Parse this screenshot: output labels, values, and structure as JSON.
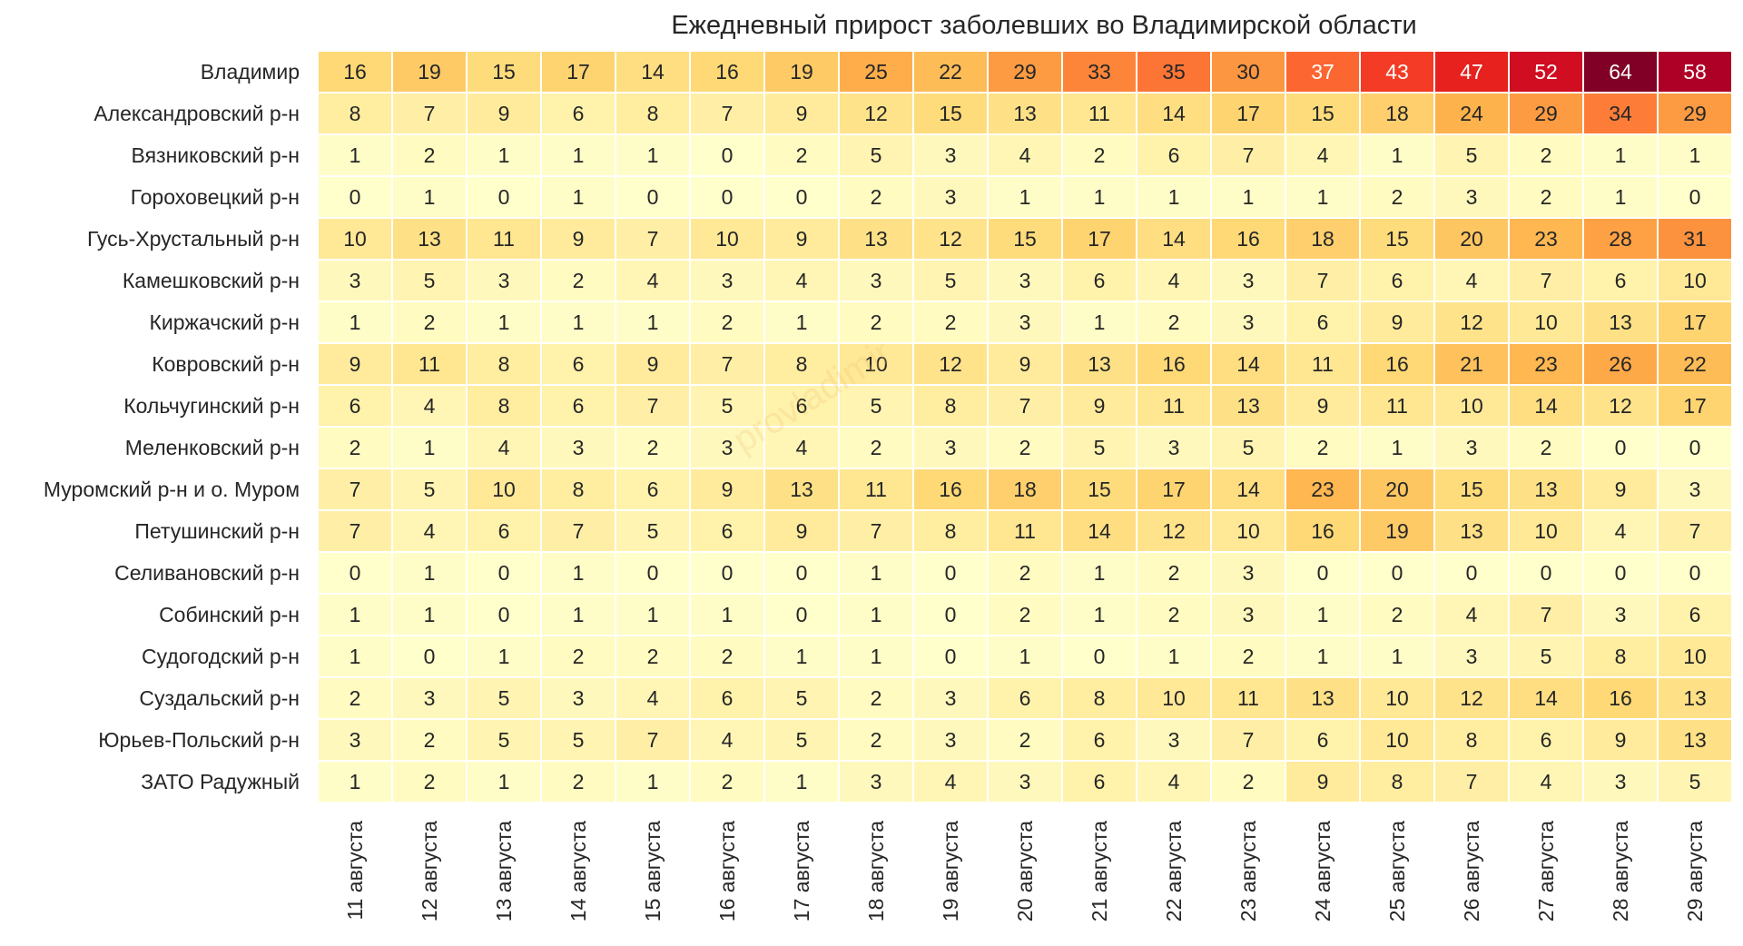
{
  "chart_data": {
    "type": "heatmap",
    "title": "Ежедневный прирост заболевших во Владимирской области",
    "xlabel": "",
    "ylabel": "",
    "x": [
      "11 августа",
      "12 августа",
      "13 августа",
      "14 августа",
      "15 августа",
      "16 августа",
      "17 августа",
      "18 августа",
      "19 августа",
      "20 августа",
      "21 августа",
      "22 августа",
      "23 августа",
      "24 августа",
      "25 августа",
      "26 августа",
      "27 августа",
      "28 августа",
      "29 августа"
    ],
    "y": [
      "Владимир",
      "Александровский р-н",
      "Вязниковский р-н",
      "Гороховецкий р-н",
      "Гусь-Хрустальный р-н",
      "Камешковский р-н",
      "Киржачский р-н",
      "Ковровский р-н",
      "Кольчугинский р-н",
      "Меленковский р-н",
      "Муромский р-н и о. Муром",
      "Петушинский р-н",
      "Селивановский р-н",
      "Собинский р-н",
      "Судогодский р-н",
      "Суздальский р-н",
      "Юрьев-Польский р-н",
      "ЗАТО Радужный"
    ],
    "values": [
      [
        16,
        19,
        15,
        17,
        14,
        16,
        19,
        25,
        22,
        29,
        33,
        35,
        30,
        37,
        43,
        47,
        52,
        64,
        58
      ],
      [
        8,
        7,
        9,
        6,
        8,
        7,
        9,
        12,
        15,
        13,
        11,
        14,
        17,
        15,
        18,
        24,
        29,
        34,
        29
      ],
      [
        1,
        2,
        1,
        1,
        1,
        0,
        2,
        5,
        3,
        4,
        2,
        6,
        7,
        4,
        1,
        5,
        2,
        1,
        1
      ],
      [
        0,
        1,
        0,
        1,
        0,
        0,
        0,
        2,
        3,
        1,
        1,
        1,
        1,
        1,
        2,
        3,
        2,
        1,
        0
      ],
      [
        10,
        13,
        11,
        9,
        7,
        10,
        9,
        13,
        12,
        15,
        17,
        14,
        16,
        18,
        15,
        20,
        23,
        28,
        31
      ],
      [
        3,
        5,
        3,
        2,
        4,
        3,
        4,
        3,
        5,
        3,
        6,
        4,
        3,
        7,
        6,
        4,
        7,
        6,
        10
      ],
      [
        1,
        2,
        1,
        1,
        1,
        2,
        1,
        2,
        2,
        3,
        1,
        2,
        3,
        6,
        9,
        12,
        10,
        13,
        17
      ],
      [
        9,
        11,
        8,
        6,
        9,
        7,
        8,
        10,
        12,
        9,
        13,
        16,
        14,
        11,
        16,
        21,
        23,
        26,
        22
      ],
      [
        6,
        4,
        8,
        6,
        7,
        5,
        6,
        5,
        8,
        7,
        9,
        11,
        13,
        9,
        11,
        10,
        14,
        12,
        17
      ],
      [
        2,
        1,
        4,
        3,
        2,
        3,
        4,
        2,
        3,
        2,
        5,
        3,
        5,
        2,
        1,
        3,
        2,
        0,
        0
      ],
      [
        7,
        5,
        10,
        8,
        6,
        9,
        13,
        11,
        16,
        18,
        15,
        17,
        14,
        23,
        20,
        15,
        13,
        9,
        3
      ],
      [
        7,
        4,
        6,
        7,
        5,
        6,
        9,
        7,
        8,
        11,
        14,
        12,
        10,
        16,
        19,
        13,
        10,
        4,
        7
      ],
      [
        0,
        1,
        0,
        1,
        0,
        0,
        0,
        1,
        0,
        2,
        1,
        2,
        3,
        0,
        0,
        0,
        0,
        0,
        0
      ],
      [
        1,
        1,
        0,
        1,
        1,
        1,
        0,
        1,
        0,
        2,
        1,
        2,
        3,
        1,
        2,
        4,
        7,
        3,
        6
      ],
      [
        1,
        0,
        1,
        2,
        2,
        2,
        1,
        1,
        0,
        1,
        0,
        1,
        2,
        1,
        1,
        3,
        5,
        8,
        10
      ],
      [
        2,
        3,
        5,
        3,
        4,
        6,
        5,
        2,
        3,
        6,
        8,
        10,
        11,
        13,
        10,
        12,
        14,
        16,
        13
      ],
      [
        3,
        2,
        5,
        5,
        7,
        4,
        5,
        2,
        3,
        2,
        6,
        3,
        7,
        6,
        10,
        8,
        6,
        9,
        13
      ],
      [
        1,
        2,
        1,
        2,
        1,
        2,
        1,
        3,
        4,
        3,
        6,
        4,
        2,
        9,
        8,
        7,
        4,
        3,
        5
      ]
    ],
    "colormap": "YlOrRd",
    "vmin": 0,
    "vmax": 64,
    "colorbar": false,
    "watermark": "provladimir"
  }
}
